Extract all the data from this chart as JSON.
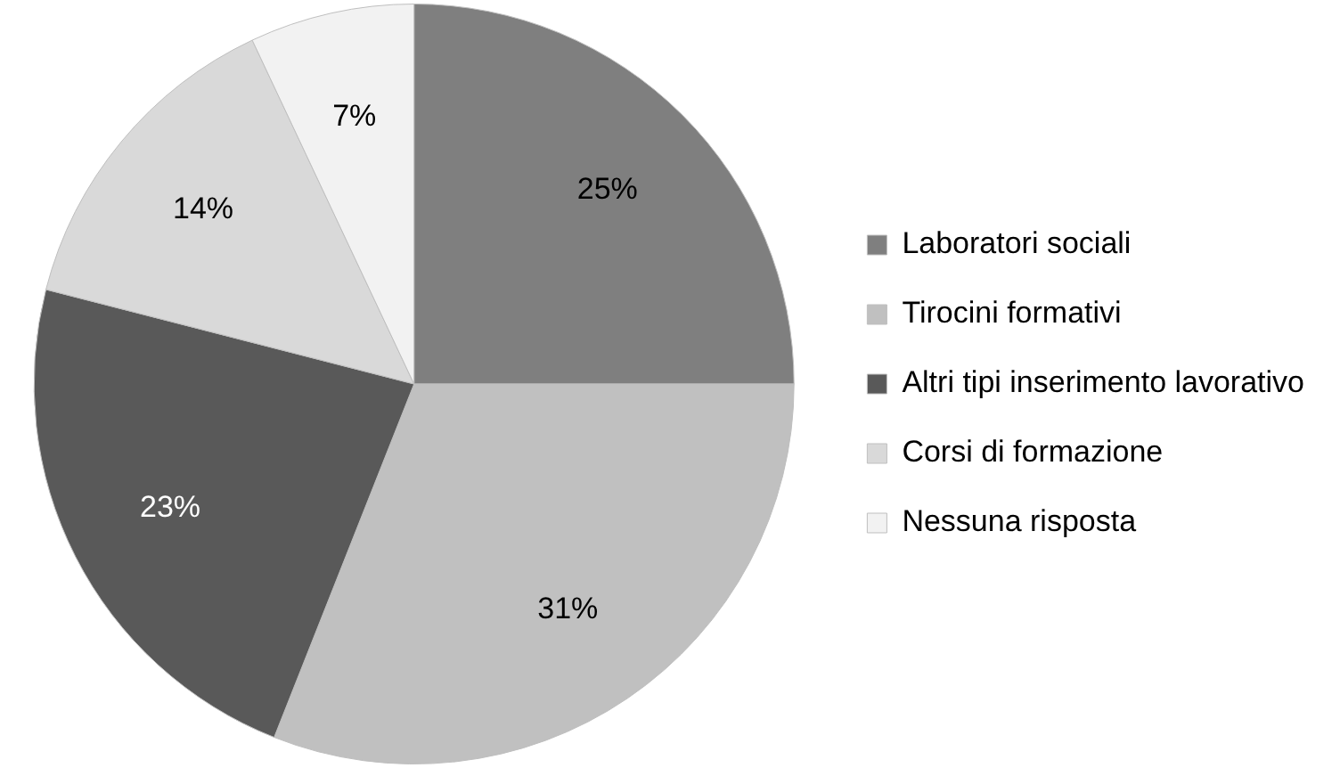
{
  "chart_data": {
    "type": "pie",
    "categories": [
      "Laboratori sociali",
      "Tirocini formativi",
      "Altri tipi inserimento lavorativo",
      "Corsi di formazione",
      "Nessuna risposta"
    ],
    "values": [
      25,
      31,
      23,
      14,
      7
    ],
    "value_labels": [
      "25%",
      "31%",
      "23%",
      "14%",
      "7%"
    ],
    "colors": [
      "#7f7f7f",
      "#c0c0c0",
      "#595959",
      "#d9d9d9",
      "#f2f2f2"
    ],
    "legend": "right"
  }
}
